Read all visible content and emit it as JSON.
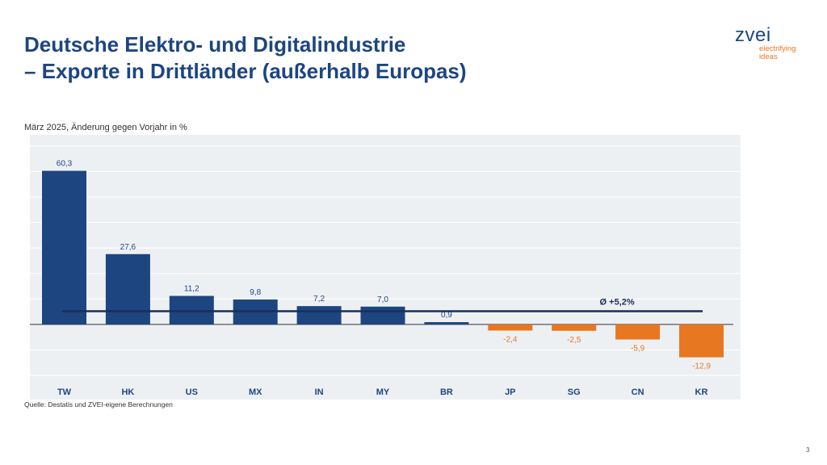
{
  "header": {
    "title_line1": "Deutsche Elektro- und Digitalindustrie",
    "title_line2": "– Exporte in Drittländer (außerhalb Europas)"
  },
  "logo": {
    "word": "zvei",
    "tagline_line1": "electrifying",
    "tagline_line2": "ideas"
  },
  "footer": {
    "source": "Quelle: Destatis und ZVEI-eigene Berechnungen",
    "page_number": "3"
  },
  "colors": {
    "positive": "#1d4580",
    "negative": "#e87722",
    "title": "#1d4580",
    "plot_background": "#edf0f3"
  },
  "chart_data": {
    "type": "bar",
    "subtitle": "März 2025, Änderung gegen Vorjahr in %",
    "categories": [
      "TW",
      "HK",
      "US",
      "MX",
      "IN",
      "MY",
      "BR",
      "JP",
      "SG",
      "CN",
      "KR"
    ],
    "values": [
      60.3,
      27.6,
      11.2,
      9.8,
      7.2,
      7.0,
      0.9,
      -2.4,
      -2.5,
      -5.9,
      -12.9
    ],
    "value_labels": [
      "60,3",
      "27,6",
      "11,2",
      "9,8",
      "7,2",
      "7,0",
      "0,9",
      "-2,4",
      "-2,5",
      "-5,9",
      "-12,9"
    ],
    "average": {
      "value": 5.2,
      "label": "Ø +5,2%"
    },
    "ylim": [
      -20,
      70
    ],
    "grid_step": 10,
    "xlabel": "",
    "ylabel": ""
  }
}
